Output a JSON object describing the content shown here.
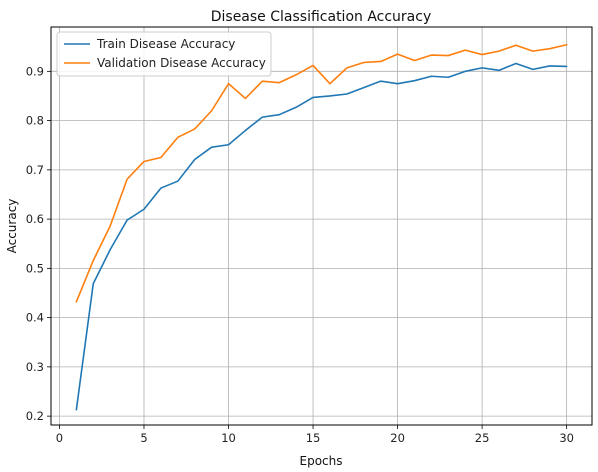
{
  "chart_data": {
    "type": "line",
    "title": "Disease Classification Accuracy",
    "xlabel": "Epochs",
    "ylabel": "Accuracy",
    "xlim": [
      -0.5,
      31.5
    ],
    "ylim": [
      0.182,
      0.99
    ],
    "xticks": [
      0,
      5,
      10,
      15,
      20,
      25,
      30
    ],
    "yticks": [
      0.2,
      0.3,
      0.4,
      0.5,
      0.6,
      0.7,
      0.8,
      0.9
    ],
    "grid": true,
    "legend_position": "top-left",
    "x": [
      1,
      2,
      3,
      4,
      5,
      6,
      7,
      8,
      9,
      10,
      11,
      12,
      13,
      14,
      15,
      16,
      17,
      18,
      19,
      20,
      21,
      22,
      23,
      24,
      25,
      26,
      27,
      28,
      29,
      30
    ],
    "series": [
      {
        "name": "Train Disease Accuracy",
        "color": "#1f77b4",
        "values": [
          0.213,
          0.469,
          0.538,
          0.598,
          0.62,
          0.663,
          0.677,
          0.721,
          0.746,
          0.751,
          0.78,
          0.807,
          0.812,
          0.827,
          0.847,
          0.85,
          0.854,
          0.867,
          0.88,
          0.875,
          0.881,
          0.89,
          0.888,
          0.9,
          0.907,
          0.902,
          0.916,
          0.904,
          0.911,
          0.91
        ]
      },
      {
        "name": "Validation Disease Accuracy",
        "color": "#ff7f0e",
        "values": [
          0.432,
          0.516,
          0.586,
          0.681,
          0.717,
          0.725,
          0.766,
          0.783,
          0.82,
          0.875,
          0.845,
          0.88,
          0.877,
          0.893,
          0.912,
          0.875,
          0.907,
          0.918,
          0.92,
          0.935,
          0.922,
          0.933,
          0.932,
          0.943,
          0.934,
          0.941,
          0.953,
          0.941,
          0.946,
          0.954
        ]
      }
    ]
  }
}
